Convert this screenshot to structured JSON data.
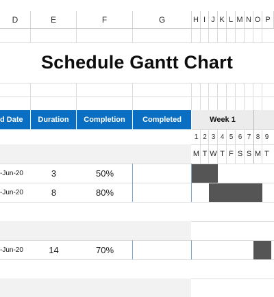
{
  "columns": [
    {
      "id": "D",
      "label": "D"
    },
    {
      "id": "E",
      "label": "E"
    },
    {
      "id": "F",
      "label": "F"
    },
    {
      "id": "G",
      "label": "G"
    },
    {
      "id": "H",
      "label": "H"
    },
    {
      "id": "I",
      "label": "I"
    },
    {
      "id": "J",
      "label": "J"
    },
    {
      "id": "K",
      "label": "K"
    },
    {
      "id": "L",
      "label": "L"
    },
    {
      "id": "M",
      "label": "M"
    },
    {
      "id": "N",
      "label": "N"
    },
    {
      "id": "O",
      "label": "O"
    },
    {
      "id": "P",
      "label": "P"
    }
  ],
  "title": "Schedule Gantt Chart",
  "headers": {
    "end_date": "d Date",
    "duration": "Duration",
    "completion": "Completion",
    "completed": "Completed",
    "week": "Week 1"
  },
  "day_numbers": [
    "1",
    "2",
    "3",
    "4",
    "5",
    "6",
    "7",
    "8",
    "9"
  ],
  "day_letters": [
    "M",
    "T",
    "W",
    "T",
    "F",
    "S",
    "S",
    "M",
    "T"
  ],
  "tasks": [
    {
      "end_date": "-Jun-20",
      "duration": "3",
      "completion": "50%",
      "completed": "",
      "bar_start_day": 1,
      "bar_days": 1
    },
    {
      "end_date": "-Jun-20",
      "duration": "8",
      "completion": "80%",
      "completed": "",
      "bar_start_day": 3,
      "bar_days": 2
    },
    {
      "end_date": "-Jun-20",
      "duration": "14",
      "completion": "70%",
      "completed": "",
      "bar_start_day": 8,
      "bar_days": 1
    }
  ],
  "colors": {
    "header_blue": "#0a6fc2",
    "bar_gray": "#555555",
    "shade_gray": "#f2f2f2"
  }
}
